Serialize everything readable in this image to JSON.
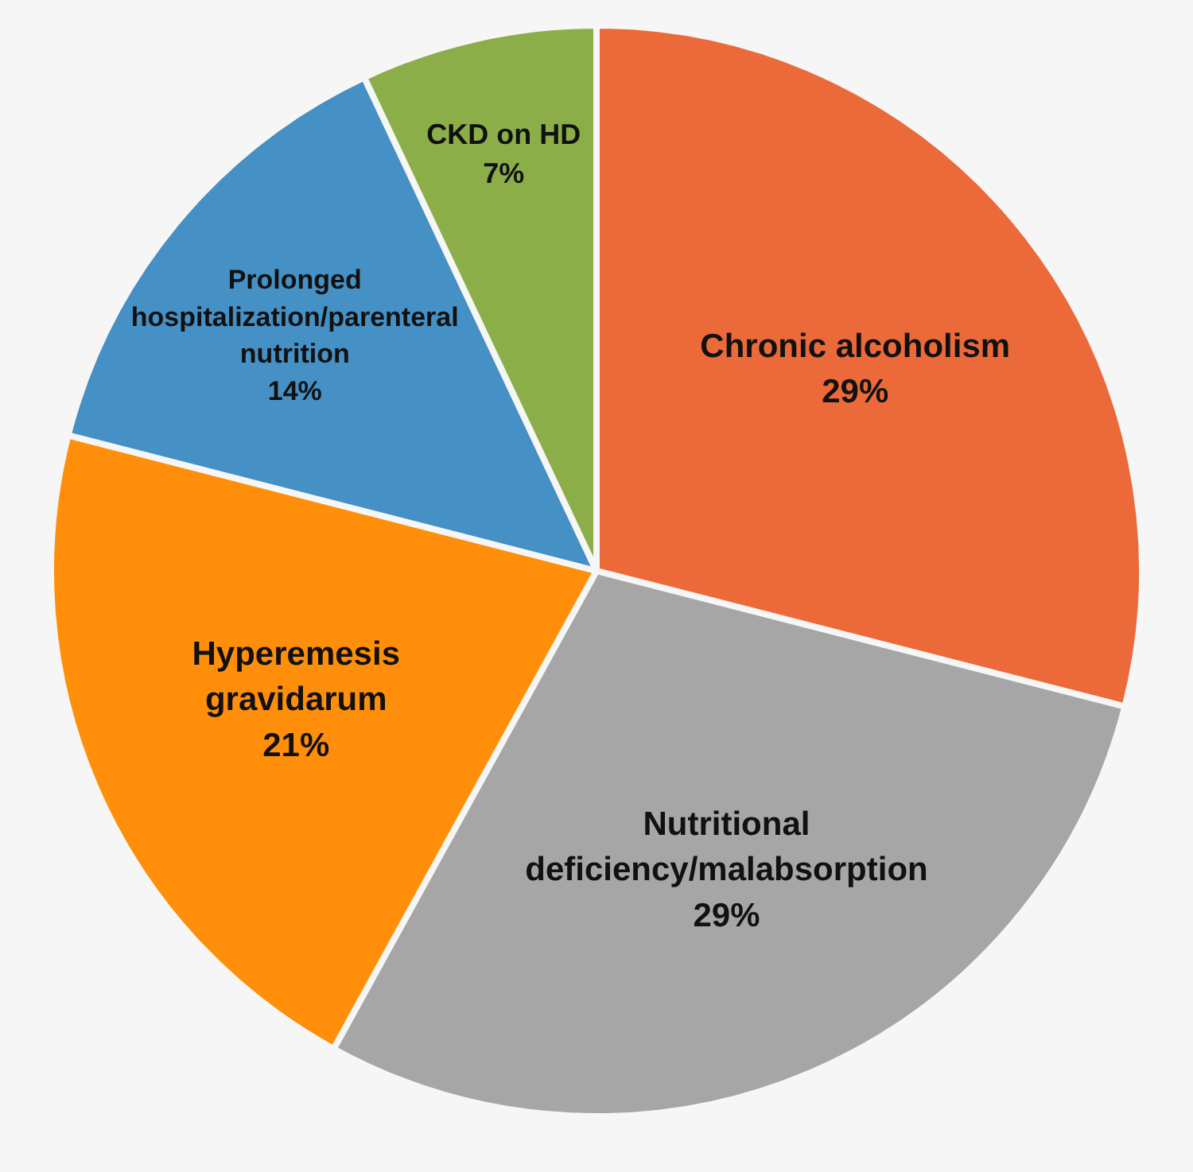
{
  "chart_data": {
    "type": "pie",
    "categories": [
      "Chronic alcoholism",
      "Nutritional deficiency/malabsorption",
      "Hyperemesis gravidarum",
      "Prolonged hospitalization/parenteral nutrition",
      "CKD on HD"
    ],
    "values": [
      29,
      29,
      21,
      14,
      7
    ],
    "colors": [
      "#ec6a3a",
      "#a6a6a6",
      "#ff8f0a",
      "#4590c4",
      "#8cae48"
    ],
    "value_labels": [
      "29%",
      "29%",
      "21%",
      "14%",
      "7%"
    ]
  }
}
